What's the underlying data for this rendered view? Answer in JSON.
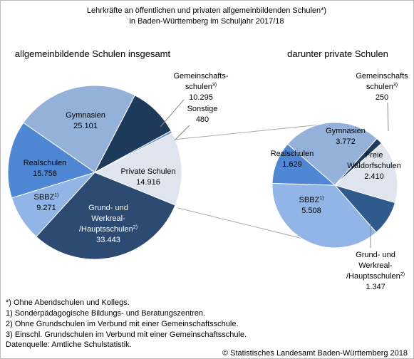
{
  "title": [
    "Lehrkräfte an öffentlichen und privaten allgemeinbildenden Schulen*)",
    "in Baden-Württemberg im Schuljahr 2017/18"
  ],
  "chart_data": [
    {
      "type": "pie",
      "title": "allgemeinbildende Schulen insgesamt",
      "categories": [
        "Gymnasien",
        "Gemeinschafts-\nschulen3)",
        "Sonstige",
        "Private Schulen",
        "Grund- und\nWerkreal-\n/Hauptsschulen2)",
        "SBBZ1)",
        "Realschulen"
      ],
      "values": [
        25101,
        10295,
        480,
        14916,
        33443,
        9271,
        15758
      ],
      "value_labels": [
        "25.101",
        "10.295",
        "480",
        "14.916",
        "33.443",
        "9.271",
        "15.758"
      ],
      "colors": [
        "#94b1d9",
        "#1e3a5a",
        "#5b8fd0",
        "#dfe4ef",
        "#2c4a72",
        "#91b5e6",
        "#4f87d4"
      ]
    },
    {
      "type": "pie",
      "title": "darunter private Schulen",
      "categories": [
        "Gymnasien",
        "Gemeinschafts\nschulen3)",
        "Freie\nWaldorfschulen",
        "Grund- und\nWerkreal-\n/Hauptsschulen2)",
        "SBBZ1)",
        "Realschulen"
      ],
      "values": [
        3772,
        250,
        2410,
        1347,
        5508,
        1629
      ],
      "value_labels": [
        "3.772",
        "250",
        "2.410",
        "1.347",
        "5.508",
        "1.629"
      ],
      "colors": [
        "#94b1d9",
        "#1e3a5a",
        "#dfe4ef",
        "#2e5a8c",
        "#91b5e6",
        "#4f87d4"
      ]
    }
  ],
  "footnotes": [
    "*) Ohne Abendschulen und Kollegs.",
    "1) Sonderpädagogische Bildungs- und Beratungszentren.",
    "2) Ohne Grundschulen im Verbund mit einer Gemeinschaftsschule.",
    "3) Einschl. Grundschulen im Verbund mit einer Gemeinschaftsschule.",
    "Datenquelle: Amtliche Schulstatistik."
  ],
  "source": "© Statistisches Landesamt Baden-Württemberg 2018"
}
